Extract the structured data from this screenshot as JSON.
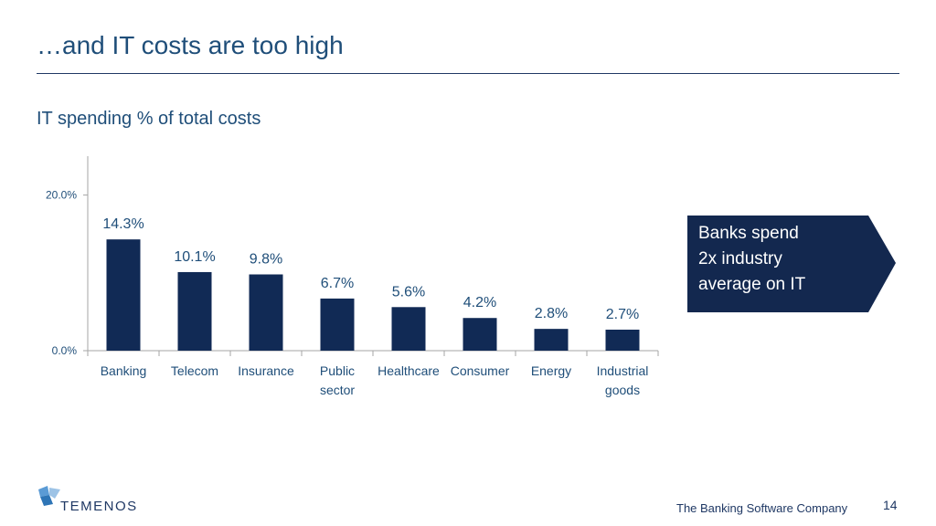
{
  "slide": {
    "title": "…and IT costs are too high",
    "subtitle": "IT spending % of total costs",
    "callout_lines": [
      "Banks spend",
      "2x industry",
      "average on IT"
    ],
    "logo_text": "TEMENOS",
    "tagline": "The Banking Software Company",
    "page_number": "14"
  },
  "colors": {
    "bar": "#112a55",
    "text": "#1f4e79",
    "callout": "#13284f"
  },
  "chart_data": {
    "type": "bar",
    "title": "IT spending % of total costs",
    "categories": [
      [
        "Banking"
      ],
      [
        "Telecom"
      ],
      [
        "Insurance"
      ],
      [
        "Public",
        "sector"
      ],
      [
        "Healthcare"
      ],
      [
        "Consumer"
      ],
      [
        "Energy"
      ],
      [
        "Industrial",
        "goods"
      ]
    ],
    "values": [
      14.3,
      10.1,
      9.8,
      6.7,
      5.6,
      4.2,
      2.8,
      2.7
    ],
    "data_labels": [
      "14.3%",
      "10.1%",
      "9.8%",
      "6.7%",
      "5.6%",
      "4.2%",
      "2.8%",
      "2.7%"
    ],
    "yticks": [
      0,
      20
    ],
    "ytick_labels": [
      "0.0%",
      "20.0%"
    ],
    "ylim": [
      0,
      25
    ],
    "grid": false,
    "legend": "none"
  }
}
